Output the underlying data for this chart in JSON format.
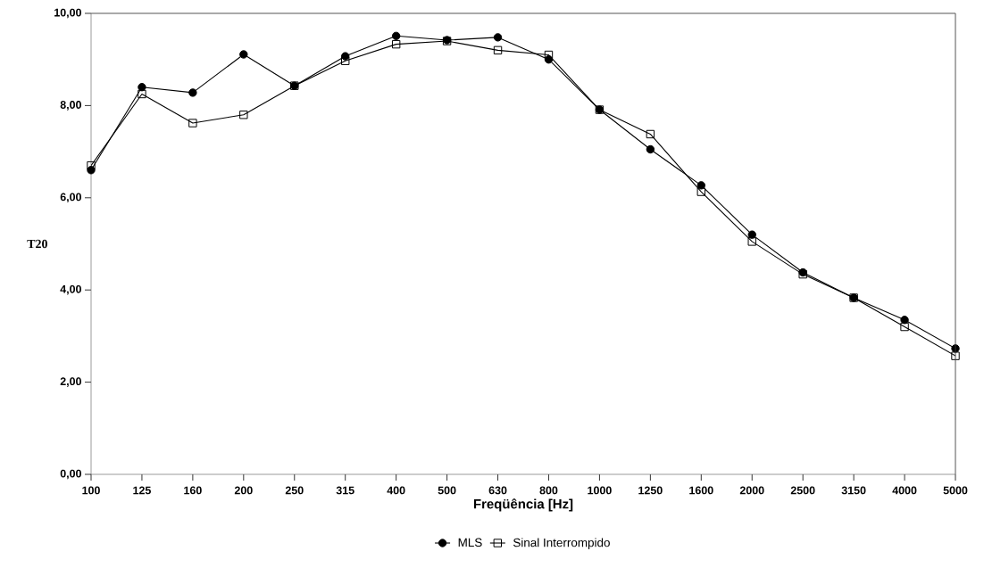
{
  "chart_data": {
    "type": "line",
    "xlabel": "Freqüência [Hz]",
    "ylabel": "T20",
    "categories": [
      "100",
      "125",
      "160",
      "200",
      "250",
      "315",
      "400",
      "500",
      "630",
      "800",
      "1000",
      "1250",
      "1600",
      "2000",
      "2500",
      "3150",
      "4000",
      "5000"
    ],
    "series": [
      {
        "name": "MLS",
        "color": "#000000",
        "marker": "circle",
        "values": [
          6.6,
          8.4,
          8.28,
          9.11,
          8.43,
          9.07,
          9.51,
          9.42,
          9.48,
          9.0,
          7.91,
          7.05,
          6.27,
          5.2,
          4.38,
          3.83,
          3.35,
          2.73
        ]
      },
      {
        "name": "Sinal Interrompido",
        "color": "#000000",
        "marker": "square",
        "values": [
          6.7,
          8.25,
          7.62,
          7.8,
          8.43,
          8.97,
          9.33,
          9.4,
          9.2,
          9.1,
          7.91,
          7.38,
          6.13,
          5.05,
          4.34,
          3.83,
          3.2,
          2.57
        ]
      }
    ],
    "ylim": [
      0,
      10
    ],
    "yticks": [
      {
        "value": 0,
        "label": "0,00"
      },
      {
        "value": 2,
        "label": "2,00"
      },
      {
        "value": 4,
        "label": "4,00"
      },
      {
        "value": 6,
        "label": "6,00"
      },
      {
        "value": 8,
        "label": "8,00"
      },
      {
        "value": 10,
        "label": "10,00"
      }
    ],
    "grid": false,
    "legend": "bottom",
    "line_style": "solid"
  }
}
